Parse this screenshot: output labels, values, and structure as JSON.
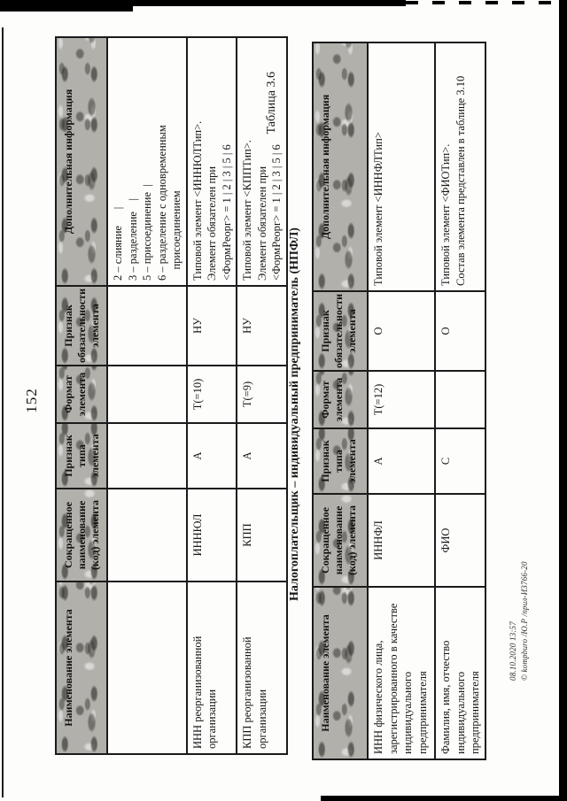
{
  "page": {
    "number": "152",
    "caption": "Таблица 3.6",
    "stamp": {
      "line1": "08.10.2020 13:57",
      "line2": "© kompburo /Ю.Р /прил-И3766-20"
    }
  },
  "table1": {
    "headers": [
      "Наименование элемента",
      "Сокращенное\nнаименование\n(код) элемента",
      "Признак\nтипа\nэлемента",
      "Формат\nэлемента",
      "Признак\nобязательности\nэлемента",
      "Дополнительная информация"
    ],
    "rows": [
      {
        "cells": [
          "",
          "",
          "",
          "",
          "",
          "2 – слияние      |\n3 – разделение    |\n5 – присоединение  |\n6 – разделение с одновременным\n    присоединением"
        ]
      },
      {
        "cells": [
          "ИНН реорганизованной\nорганизации",
          "ИННЮЛ",
          "А",
          "Т(=10)",
          "НУ",
          "Типовой элемент <ИННЮЛТип>.\nЭлемент обязателен при\n<ФормРеорг> = 1 | 2 | 3 | 5 | 6"
        ]
      },
      {
        "cells": [
          "КПП реорганизованной\nорганизации",
          "КПП",
          "А",
          "Т(=9)",
          "НУ",
          "Типовой элемент <КППТип>.\nЭлемент обязателен при\n<ФормРеорг> = 1 | 2 | 3 | 5 | 6"
        ]
      }
    ]
  },
  "table2": {
    "title": "Налогоплательщик – индивидуальный предприниматель (НПФЛ)",
    "headers": [
      "Наименование элемента",
      "Сокращенное\nнаименование\n(код) элемента",
      "Признак\nтипа\nэлемента",
      "Формат\nэлемента",
      "Признак\nобязательности\nэлемента",
      "Дополнительная информация"
    ],
    "rows": [
      {
        "cells": [
          "ИНН физического лица,\nзарегистрированного в качестве\nиндивидуального\nпредпринимателя",
          "ИННФЛ",
          "А",
          "Т(=12)",
          "О",
          "Типовой элемент <ИННФЛТип>"
        ]
      },
      {
        "cells": [
          "Фамилия, имя, отчество\nиндивидуального\nпредпринимателя",
          "ФИО",
          "С",
          "",
          "О",
          "Типовой элемент <ФИОТип>.\nСостав элемента представлен в таблице 3.10"
        ]
      }
    ]
  }
}
